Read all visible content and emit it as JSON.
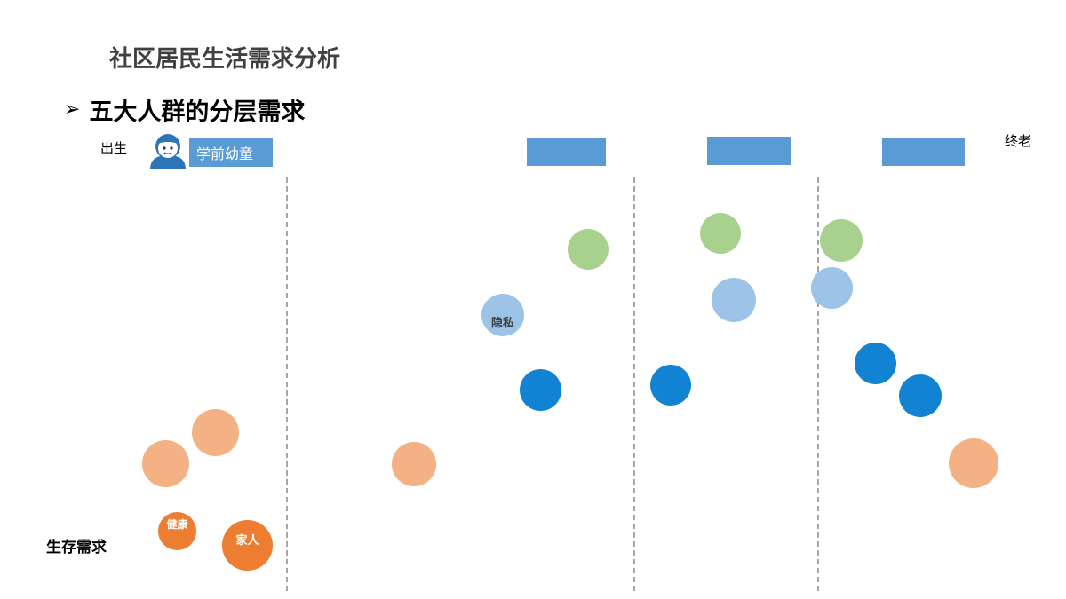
{
  "header": {
    "title": "社区居民生活需求分析",
    "subtitle_bullet": "➢",
    "subtitle": "五大人群的分层需求"
  },
  "timeline": {
    "start_label": "出生",
    "end_label": "终老",
    "stages": [
      {
        "label": "学前幼童"
      },
      {
        "label": ""
      },
      {
        "label": ""
      },
      {
        "label": ""
      }
    ]
  },
  "levels": {
    "bottom_label": "生存需求"
  },
  "bubble_labels": {
    "privacy": "隐私",
    "health": "健康",
    "family": "家人"
  },
  "colors": {
    "stage_box": "#5b9bd5",
    "green": "#a9d18e",
    "light_blue": "#9dc3e6",
    "blue": "#1282d2",
    "light_orange": "#f4b183",
    "orange": "#ed7d31",
    "divider": "#a6a6a6"
  },
  "icons": {
    "child_avatar": "child-avatar-icon"
  }
}
